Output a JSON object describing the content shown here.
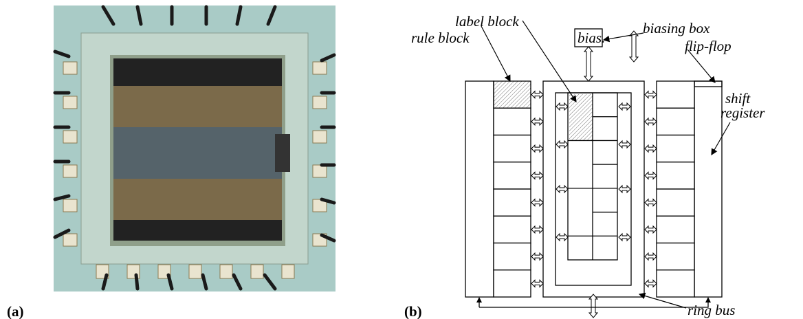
{
  "panel_a": {
    "label": "(a)"
  },
  "panel_b": {
    "label": "(b)",
    "bias": "bias.",
    "rule_block": "rule block",
    "label_block": "label block",
    "biasing_box": "biasing box",
    "flip_flop": "flip-flop",
    "shift_register": [
      "shift",
      "register"
    ],
    "ring_bus": "ring bus"
  }
}
